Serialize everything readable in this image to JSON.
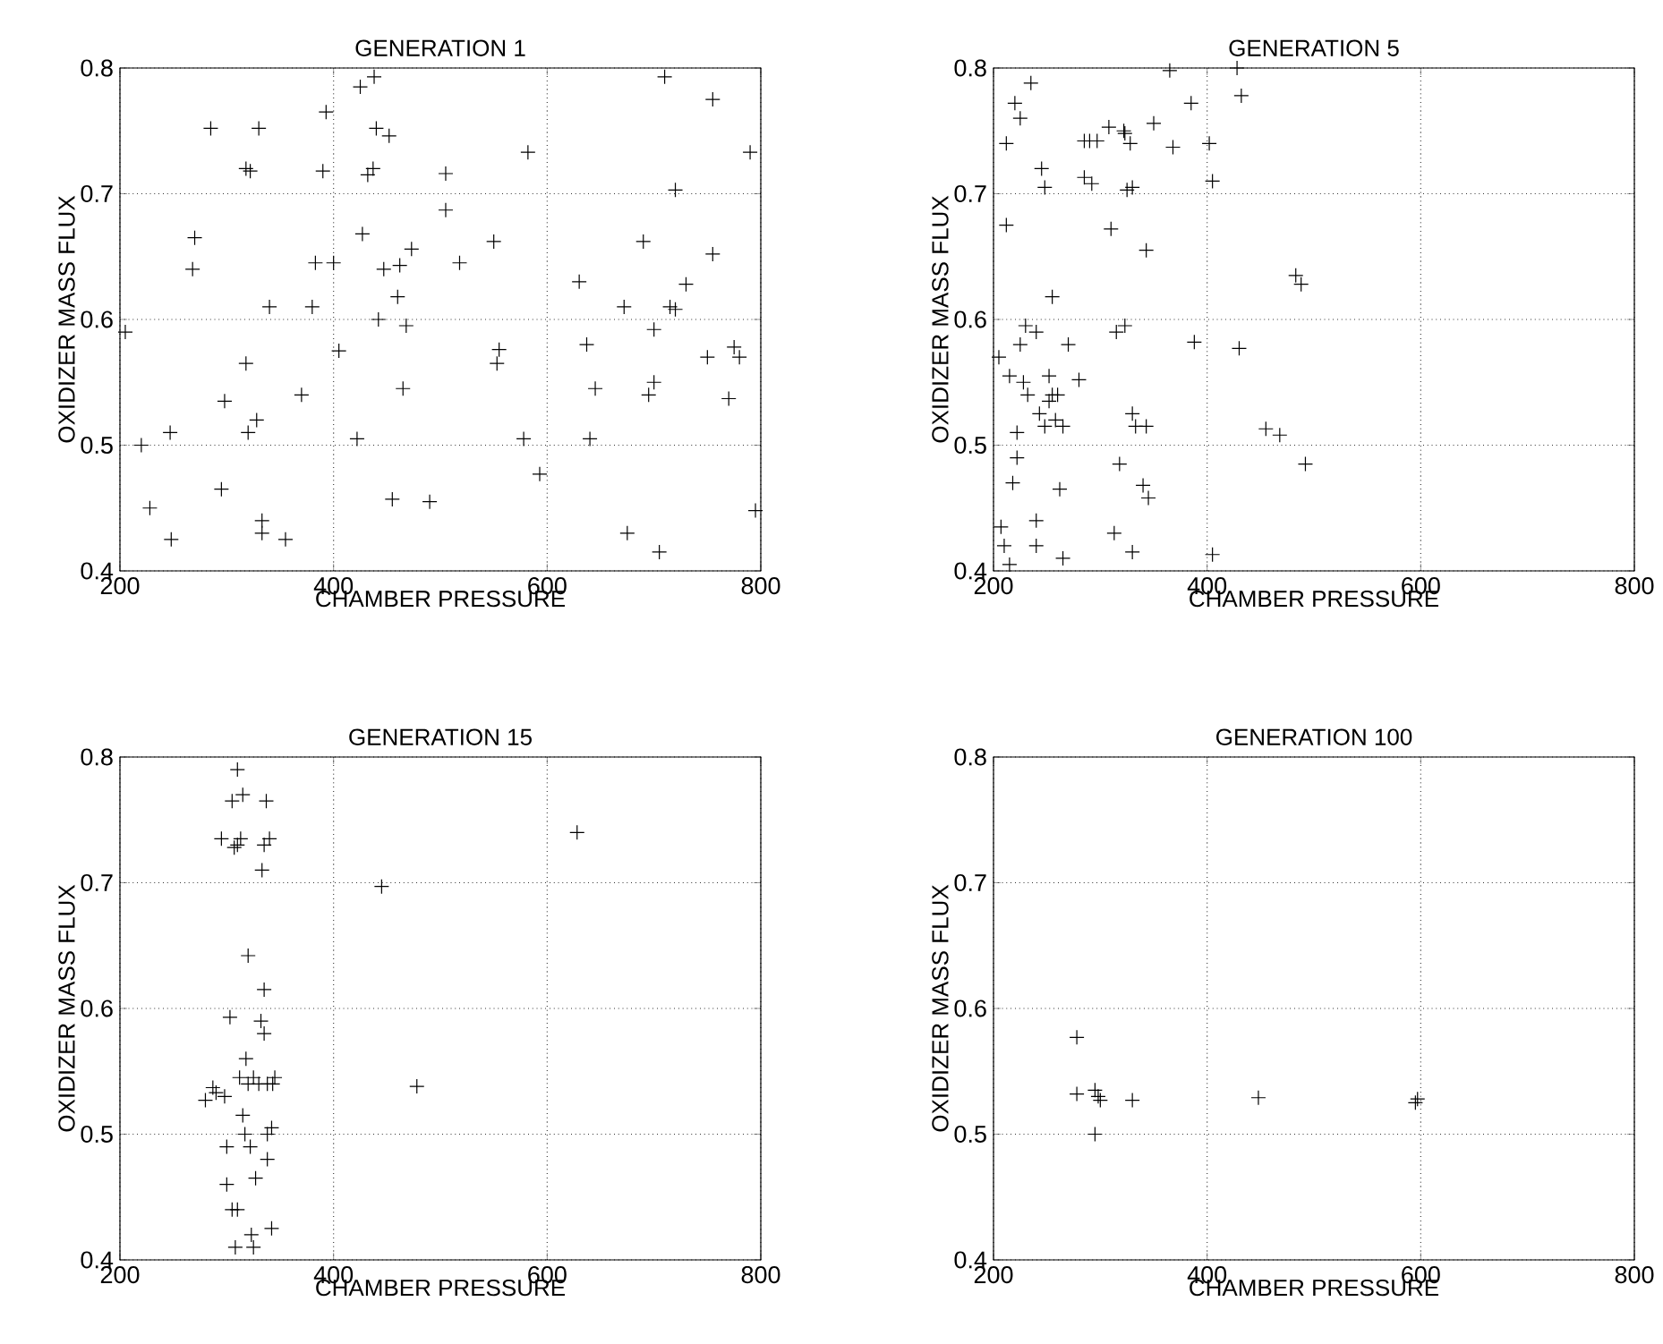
{
  "chart_data": [
    {
      "type": "scatter",
      "title": "GENERATION 1",
      "xlabel": "CHAMBER PRESSURE",
      "ylabel": "OXIDIZER MASS FLUX",
      "color": "#000000",
      "marker": "cross",
      "grid": true,
      "xlim": [
        200,
        800
      ],
      "ylim": [
        0.4,
        0.8
      ],
      "xticks": [
        200,
        400,
        600,
        800
      ],
      "yticks": [
        0.4,
        0.5,
        0.6,
        0.7,
        0.8
      ],
      "x": [
        205,
        220,
        228,
        248,
        247,
        268,
        270,
        285,
        295,
        298,
        318,
        318,
        320,
        322,
        330,
        328,
        333,
        333,
        340,
        355,
        370,
        380,
        383,
        390,
        393,
        400,
        405,
        422,
        425,
        427,
        432,
        437,
        438,
        440,
        442,
        447,
        452,
        455,
        460,
        462,
        465,
        468,
        473,
        490,
        505,
        505,
        518,
        550,
        553,
        555,
        578,
        582,
        593,
        630,
        637,
        645,
        640,
        672,
        675,
        690,
        695,
        700,
        700,
        705,
        710,
        715,
        720,
        720,
        730,
        750,
        755,
        755,
        770,
        775,
        780,
        790,
        795
      ],
      "values": [
        0.59,
        0.5,
        0.45,
        0.425,
        0.51,
        0.64,
        0.665,
        0.752,
        0.465,
        0.535,
        0.565,
        0.72,
        0.51,
        0.718,
        0.752,
        0.52,
        0.44,
        0.43,
        0.61,
        0.425,
        0.54,
        0.61,
        0.645,
        0.718,
        0.765,
        0.645,
        0.575,
        0.505,
        0.785,
        0.668,
        0.715,
        0.72,
        0.793,
        0.752,
        0.6,
        0.64,
        0.746,
        0.457,
        0.618,
        0.643,
        0.545,
        0.595,
        0.656,
        0.455,
        0.716,
        0.687,
        0.645,
        0.662,
        0.565,
        0.576,
        0.505,
        0.733,
        0.477,
        0.63,
        0.58,
        0.545,
        0.505,
        0.61,
        0.43,
        0.662,
        0.54,
        0.592,
        0.55,
        0.415,
        0.793,
        0.61,
        0.703,
        0.608,
        0.628,
        0.57,
        0.775,
        0.652,
        0.537,
        0.578,
        0.57,
        0.733,
        0.448
      ]
    },
    {
      "type": "scatter",
      "title": "GENERATION 5",
      "xlabel": "CHAMBER PRESSURE",
      "ylabel": "OXIDIZER MASS FLUX",
      "color": "#000000",
      "marker": "cross",
      "grid": true,
      "xlim": [
        200,
        800
      ],
      "ylim": [
        0.4,
        0.8
      ],
      "xticks": [
        200,
        400,
        600,
        800
      ],
      "yticks": [
        0.4,
        0.5,
        0.6,
        0.7,
        0.8
      ],
      "x": [
        205,
        207,
        210,
        212,
        212,
        215,
        215,
        218,
        220,
        222,
        222,
        225,
        225,
        228,
        230,
        232,
        235,
        240,
        240,
        240,
        243,
        245,
        248,
        248,
        252,
        252,
        255,
        255,
        258,
        260,
        262,
        265,
        265,
        270,
        280,
        285,
        285,
        290,
        292,
        297,
        308,
        310,
        313,
        315,
        318,
        322,
        323,
        323,
        325,
        328,
        330,
        330,
        330,
        333,
        340,
        343,
        343,
        345,
        350,
        365,
        368,
        385,
        388,
        402,
        405,
        405,
        428,
        430,
        432,
        455,
        468,
        483,
        488,
        492
      ],
      "values": [
        0.57,
        0.435,
        0.42,
        0.74,
        0.675,
        0.555,
        0.405,
        0.47,
        0.772,
        0.49,
        0.51,
        0.76,
        0.58,
        0.55,
        0.595,
        0.54,
        0.788,
        0.59,
        0.42,
        0.44,
        0.525,
        0.72,
        0.705,
        0.515,
        0.555,
        0.535,
        0.618,
        0.54,
        0.52,
        0.54,
        0.465,
        0.515,
        0.41,
        0.58,
        0.552,
        0.742,
        0.713,
        0.742,
        0.708,
        0.742,
        0.753,
        0.672,
        0.43,
        0.59,
        0.485,
        0.75,
        0.748,
        0.595,
        0.703,
        0.74,
        0.705,
        0.415,
        0.525,
        0.515,
        0.468,
        0.515,
        0.655,
        0.458,
        0.756,
        0.798,
        0.737,
        0.772,
        0.582,
        0.74,
        0.413,
        0.71,
        0.8,
        0.577,
        0.778,
        0.513,
        0.508,
        0.635,
        0.628,
        0.485
      ]
    },
    {
      "type": "scatter",
      "title": "GENERATION 15",
      "xlabel": "CHAMBER PRESSURE",
      "ylabel": "OXIDIZER MASS FLUX",
      "color": "#000000",
      "marker": "cross",
      "grid": true,
      "xlim": [
        200,
        800
      ],
      "ylim": [
        0.4,
        0.8
      ],
      "xticks": [
        200,
        400,
        600,
        800
      ],
      "yticks": [
        0.4,
        0.5,
        0.6,
        0.7,
        0.8
      ],
      "x": [
        280,
        287,
        290,
        295,
        298,
        300,
        300,
        303,
        305,
        305,
        307,
        310,
        308,
        310,
        312,
        313,
        315,
        315,
        317,
        318,
        320,
        320,
        322,
        323,
        325,
        327,
        330,
        332,
        333,
        335,
        335,
        335,
        337,
        338,
        338,
        338,
        340,
        342,
        342,
        343,
        345,
        325,
        310,
        445,
        478,
        628
      ],
      "values": [
        0.527,
        0.537,
        0.533,
        0.735,
        0.53,
        0.49,
        0.46,
        0.593,
        0.44,
        0.765,
        0.728,
        0.73,
        0.41,
        0.79,
        0.545,
        0.735,
        0.77,
        0.515,
        0.5,
        0.56,
        0.54,
        0.642,
        0.49,
        0.42,
        0.545,
        0.465,
        0.54,
        0.59,
        0.71,
        0.615,
        0.73,
        0.58,
        0.765,
        0.5,
        0.48,
        0.54,
        0.735,
        0.505,
        0.425,
        0.54,
        0.545,
        0.41,
        0.44,
        0.697,
        0.538,
        0.74
      ]
    },
    {
      "type": "scatter",
      "title": "GENERATION 100",
      "xlabel": "CHAMBER PRESSURE",
      "ylabel": "OXIDIZER MASS FLUX",
      "color": "#000000",
      "marker": "cross",
      "grid": true,
      "xlim": [
        200,
        800
      ],
      "ylim": [
        0.4,
        0.8
      ],
      "xticks": [
        200,
        400,
        600,
        800
      ],
      "yticks": [
        0.4,
        0.5,
        0.6,
        0.7,
        0.8
      ],
      "x": [
        278,
        278,
        295,
        295,
        298,
        300,
        330,
        448,
        597,
        595
      ],
      "values": [
        0.577,
        0.532,
        0.535,
        0.5,
        0.53,
        0.527,
        0.527,
        0.529,
        0.528,
        0.525
      ]
    }
  ]
}
